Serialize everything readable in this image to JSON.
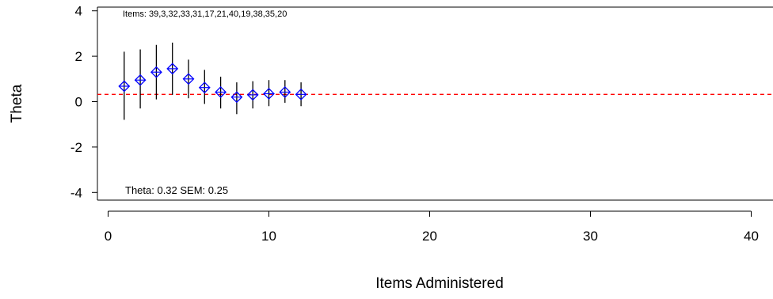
{
  "chart_data": {
    "type": "scatter",
    "title": "",
    "xlabel": "Items Administered",
    "ylabel": "Theta",
    "xlim": [
      0,
      41
    ],
    "ylim": [
      -4.2,
      4.1
    ],
    "xticks": [
      "0",
      "10",
      "20",
      "30",
      "40"
    ],
    "yticks": [
      "4",
      "2",
      "0",
      "-2",
      "-4"
    ],
    "x": [
      1,
      2,
      3,
      4,
      5,
      6,
      7,
      8,
      9,
      10,
      11,
      12
    ],
    "theta": [
      0.68,
      0.95,
      1.3,
      1.45,
      1.0,
      0.62,
      0.42,
      0.2,
      0.3,
      0.35,
      0.42,
      0.32
    ],
    "lower": [
      -0.8,
      -0.3,
      0.1,
      0.3,
      0.15,
      -0.1,
      -0.3,
      -0.55,
      -0.3,
      -0.2,
      -0.05,
      -0.2
    ],
    "upper": [
      2.2,
      2.3,
      2.5,
      2.6,
      1.85,
      1.4,
      1.1,
      0.85,
      0.9,
      0.95,
      0.95,
      0.85
    ],
    "reference_line": {
      "y": 0.32,
      "color": "#ff0000",
      "style": "dashed"
    },
    "marker_color": "#0000ff",
    "items_annotation": "Items: 39,3,32,33,31,17,21,40,19,38,35,20",
    "theta_annotation": "Theta:  0.32  SEM:  0.25"
  }
}
